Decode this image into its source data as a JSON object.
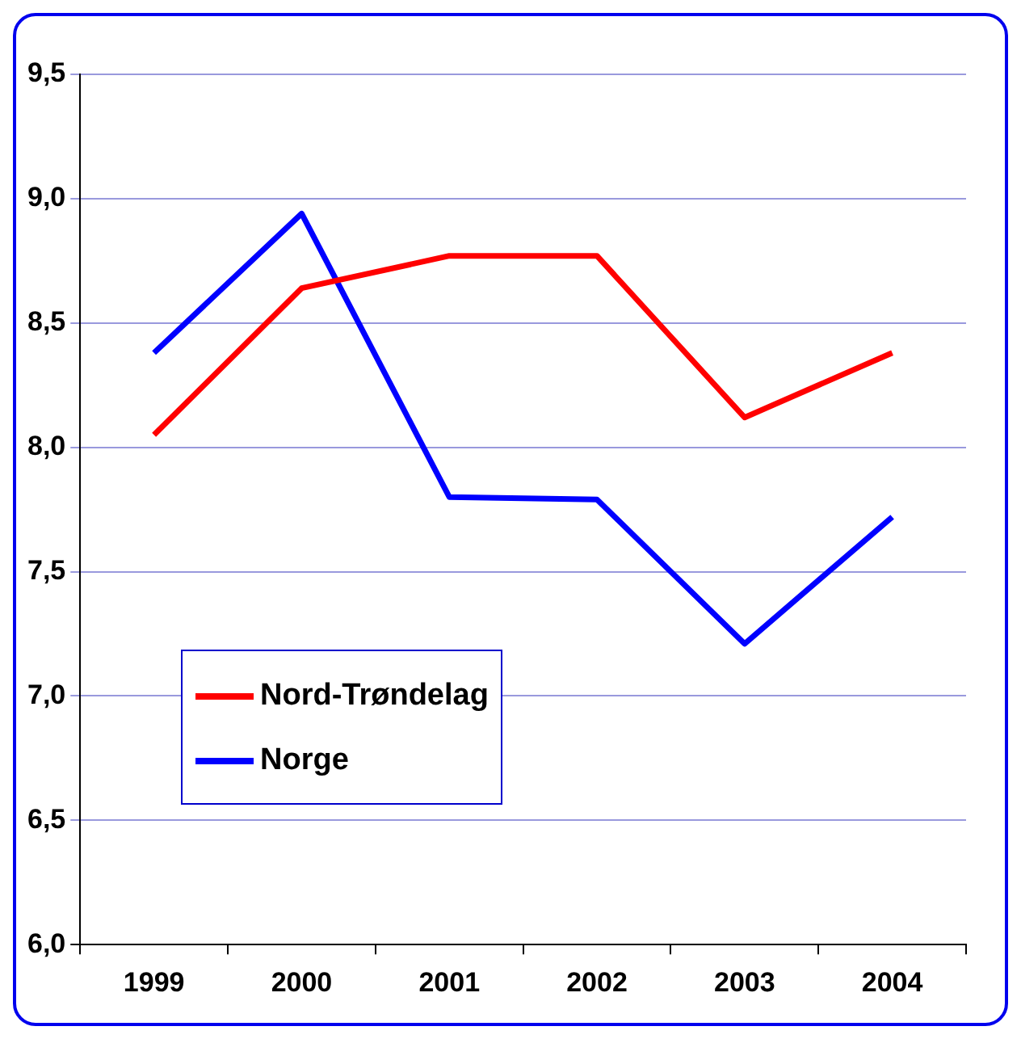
{
  "chart_data": {
    "type": "line",
    "categories": [
      "1999",
      "2000",
      "2001",
      "2002",
      "2003",
      "2004"
    ],
    "series": [
      {
        "name": "Nord-Trøndelag",
        "color": "#ff0000",
        "values": [
          8.05,
          8.64,
          8.77,
          8.77,
          8.12,
          8.38
        ]
      },
      {
        "name": "Norge",
        "color": "#0000ff",
        "values": [
          8.38,
          8.94,
          7.8,
          7.79,
          7.21,
          7.72
        ]
      }
    ],
    "ylim": [
      6,
      9.5
    ],
    "yticks": [
      {
        "value": 6,
        "label": "6,0"
      },
      {
        "value": 6.5,
        "label": "6,5"
      },
      {
        "value": 7,
        "label": "7,0"
      },
      {
        "value": 7.5,
        "label": "7,5"
      },
      {
        "value": 8,
        "label": "8,0"
      },
      {
        "value": 8.5,
        "label": "8,5"
      },
      {
        "value": 9,
        "label": "9,0"
      },
      {
        "value": 9.5,
        "label": "9,5"
      }
    ],
    "grid": "y",
    "legend": "bottom left",
    "marker": "none",
    "line_style": "solid"
  }
}
